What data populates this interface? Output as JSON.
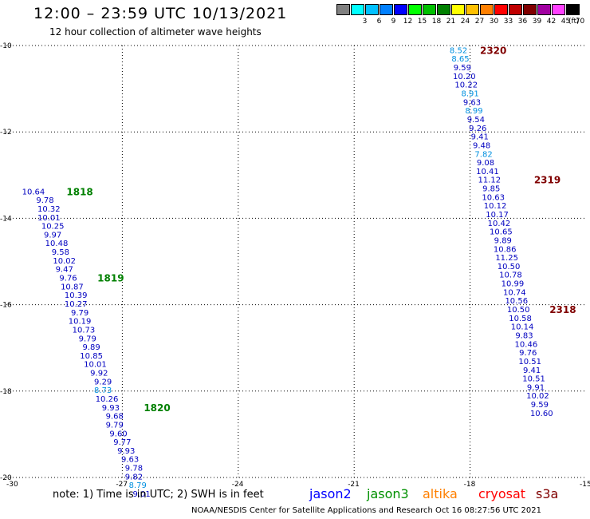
{
  "header": {
    "title": "12:00 – 23:59 UTC 10/13/2021",
    "subtitle": "12 hour collection of altimeter wave heights"
  },
  "legend": {
    "unit": "(ft)",
    "items": [
      {
        "label": "",
        "color": "#808080"
      },
      {
        "label": "3",
        "color": "#00ffff"
      },
      {
        "label": "6",
        "color": "#00c0ff"
      },
      {
        "label": "9",
        "color": "#0080ff"
      },
      {
        "label": "12",
        "color": "#0000ff"
      },
      {
        "label": "15",
        "color": "#00ff00"
      },
      {
        "label": "18",
        "color": "#00c000"
      },
      {
        "label": "21",
        "color": "#008000"
      },
      {
        "label": "24",
        "color": "#ffff00"
      },
      {
        "label": "27",
        "color": "#ffc000"
      },
      {
        "label": "30",
        "color": "#ff8000"
      },
      {
        "label": "33",
        "color": "#ff0000"
      },
      {
        "label": "36",
        "color": "#c00000"
      },
      {
        "label": "39",
        "color": "#800000"
      },
      {
        "label": "42",
        "color": "#a000a0"
      },
      {
        "label": "45",
        "color": "#ff40ff"
      },
      {
        "label": "70",
        "color": "#000000"
      }
    ]
  },
  "map": {
    "lon_min": -30,
    "lon_max": -15,
    "lat_min": -20,
    "lat_max": -10,
    "x_ticks": [
      "-30",
      "-27",
      "-24",
      "-21",
      "-18",
      "-15"
    ],
    "y_ticks": [
      "-10",
      "-12",
      "-14",
      "-16",
      "-18",
      "-20"
    ],
    "tracks": [
      {
        "points": [
          {
            "lon": -29.3,
            "lat": -13.37,
            "value": "10.64",
            "color": "#0000c0"
          },
          {
            "lon": -29.0,
            "lat": -13.57,
            "value": "9.78",
            "color": "#0000c0"
          },
          {
            "lon": -28.9,
            "lat": -13.77,
            "value": "10.32",
            "color": "#0000c0"
          },
          {
            "lon": -28.9,
            "lat": -13.97,
            "value": "10.01",
            "color": "#0000c0"
          },
          {
            "lon": -28.8,
            "lat": -14.17,
            "value": "10.25",
            "color": "#0000c0"
          },
          {
            "lon": -28.8,
            "lat": -14.37,
            "value": "9.97",
            "color": "#0000c0"
          },
          {
            "lon": -28.7,
            "lat": -14.57,
            "value": "10.48",
            "color": "#0000c0"
          },
          {
            "lon": -28.6,
            "lat": -14.77,
            "value": "9.58",
            "color": "#0000c0"
          },
          {
            "lon": -28.5,
            "lat": -14.97,
            "value": "10.02",
            "color": "#0000c0"
          },
          {
            "lon": -28.5,
            "lat": -15.17,
            "value": "9.47",
            "color": "#0000c0"
          },
          {
            "lon": -28.4,
            "lat": -15.37,
            "value": "9.76",
            "color": "#0000c0"
          },
          {
            "lon": -28.3,
            "lat": -15.57,
            "value": "10.87",
            "color": "#0000c0"
          },
          {
            "lon": -28.2,
            "lat": -15.77,
            "value": "10.39",
            "color": "#0000c0"
          },
          {
            "lon": -28.2,
            "lat": -15.97,
            "value": "10.27",
            "color": "#0000c0"
          },
          {
            "lon": -28.1,
            "lat": -16.17,
            "value": "9.79",
            "color": "#0000c0"
          },
          {
            "lon": -28.1,
            "lat": -16.37,
            "value": "10.19",
            "color": "#0000c0"
          },
          {
            "lon": -28.0,
            "lat": -16.57,
            "value": "10.73",
            "color": "#0000c0"
          },
          {
            "lon": -27.9,
            "lat": -16.77,
            "value": "9.79",
            "color": "#0000c0"
          },
          {
            "lon": -27.8,
            "lat": -16.97,
            "value": "9.89",
            "color": "#0000c0"
          },
          {
            "lon": -27.8,
            "lat": -17.17,
            "value": "10.85",
            "color": "#0000c0"
          },
          {
            "lon": -27.7,
            "lat": -17.37,
            "value": "10.01",
            "color": "#0000c0"
          },
          {
            "lon": -27.6,
            "lat": -17.57,
            "value": "9.92",
            "color": "#0000c0"
          },
          {
            "lon": -27.5,
            "lat": -17.77,
            "value": "9.29",
            "color": "#0000c0"
          },
          {
            "lon": -27.5,
            "lat": -17.97,
            "value": "8.73",
            "color": "#0090e0"
          },
          {
            "lon": -27.4,
            "lat": -18.17,
            "value": "10.26",
            "color": "#0000c0"
          },
          {
            "lon": -27.3,
            "lat": -18.37,
            "value": "9.93",
            "color": "#0000c0"
          },
          {
            "lon": -27.2,
            "lat": -18.57,
            "value": "9.68",
            "color": "#0000c0"
          },
          {
            "lon": -27.2,
            "lat": -18.77,
            "value": "9.79",
            "color": "#0000c0"
          },
          {
            "lon": -27.1,
            "lat": -18.97,
            "value": "9.60",
            "color": "#0000c0"
          },
          {
            "lon": -27.0,
            "lat": -19.17,
            "value": "9.77",
            "color": "#0000c0"
          },
          {
            "lon": -26.9,
            "lat": -19.37,
            "value": "9.93",
            "color": "#0000c0"
          },
          {
            "lon": -26.8,
            "lat": -19.57,
            "value": "9.63",
            "color": "#0000c0"
          },
          {
            "lon": -26.7,
            "lat": -19.77,
            "value": "9.78",
            "color": "#0000c0"
          },
          {
            "lon": -26.7,
            "lat": -19.97,
            "value": "9.82",
            "color": "#0000c0"
          },
          {
            "lon": -26.6,
            "lat": -20.17,
            "value": "8.79",
            "color": "#0090e0"
          },
          {
            "lon": -26.5,
            "lat": -20.37,
            "value": "9.01",
            "color": "#0000c0"
          }
        ],
        "time_labels": [
          {
            "lon": -28.1,
            "lat": -13.37,
            "text": "1818",
            "color": "#008000"
          },
          {
            "lon": -27.3,
            "lat": -15.37,
            "text": "1819",
            "color": "#008000"
          },
          {
            "lon": -26.1,
            "lat": -18.37,
            "text": "1820",
            "color": "#008000"
          }
        ]
      },
      {
        "points": [
          {
            "lon": -18.3,
            "lat": -10.1,
            "value": "8.52",
            "color": "#0090e0"
          },
          {
            "lon": -18.25,
            "lat": -10.3,
            "value": "8.65",
            "color": "#0090e0"
          },
          {
            "lon": -18.2,
            "lat": -10.5,
            "value": "9.59",
            "color": "#0000c0"
          },
          {
            "lon": -18.15,
            "lat": -10.7,
            "value": "10.20",
            "color": "#0000c0"
          },
          {
            "lon": -18.1,
            "lat": -10.9,
            "value": "10.22",
            "color": "#0000c0"
          },
          {
            "lon": -18.0,
            "lat": -11.1,
            "value": "8.91",
            "color": "#0090e0"
          },
          {
            "lon": -17.95,
            "lat": -11.3,
            "value": "9.63",
            "color": "#0000c0"
          },
          {
            "lon": -17.9,
            "lat": -11.5,
            "value": "8.99",
            "color": "#0090e0"
          },
          {
            "lon": -17.85,
            "lat": -11.7,
            "value": "9.54",
            "color": "#0000c0"
          },
          {
            "lon": -17.8,
            "lat": -11.9,
            "value": "9.26",
            "color": "#0000c0"
          },
          {
            "lon": -17.75,
            "lat": -12.1,
            "value": "9.41",
            "color": "#0000c0"
          },
          {
            "lon": -17.7,
            "lat": -12.3,
            "value": "9.48",
            "color": "#0000c0"
          },
          {
            "lon": -17.65,
            "lat": -12.5,
            "value": "7.82",
            "color": "#0090e0"
          },
          {
            "lon": -17.6,
            "lat": -12.7,
            "value": "9.08",
            "color": "#0000c0"
          },
          {
            "lon": -17.55,
            "lat": -12.9,
            "value": "10.41",
            "color": "#0000c0"
          },
          {
            "lon": -17.5,
            "lat": -13.1,
            "value": "11.12",
            "color": "#0000c0"
          },
          {
            "lon": -17.45,
            "lat": -13.3,
            "value": "9.85",
            "color": "#0000c0"
          },
          {
            "lon": -17.4,
            "lat": -13.5,
            "value": "10.63",
            "color": "#0000c0"
          },
          {
            "lon": -17.35,
            "lat": -13.7,
            "value": "10.12",
            "color": "#0000c0"
          },
          {
            "lon": -17.3,
            "lat": -13.9,
            "value": "10.17",
            "color": "#0000c0"
          },
          {
            "lon": -17.25,
            "lat": -14.1,
            "value": "10.42",
            "color": "#0000c0"
          },
          {
            "lon": -17.2,
            "lat": -14.3,
            "value": "10.65",
            "color": "#0000c0"
          },
          {
            "lon": -17.15,
            "lat": -14.5,
            "value": "9.89",
            "color": "#0000c0"
          },
          {
            "lon": -17.1,
            "lat": -14.7,
            "value": "10.86",
            "color": "#0000c0"
          },
          {
            "lon": -17.05,
            "lat": -14.9,
            "value": "11.25",
            "color": "#0000c0"
          },
          {
            "lon": -17.0,
            "lat": -15.1,
            "value": "10.50",
            "color": "#0000c0"
          },
          {
            "lon": -16.95,
            "lat": -15.3,
            "value": "10.78",
            "color": "#0000c0"
          },
          {
            "lon": -16.9,
            "lat": -15.5,
            "value": "10.99",
            "color": "#0000c0"
          },
          {
            "lon": -16.85,
            "lat": -15.7,
            "value": "10.74",
            "color": "#0000c0"
          },
          {
            "lon": -16.8,
            "lat": -15.9,
            "value": "10.56",
            "color": "#0000c0"
          },
          {
            "lon": -16.75,
            "lat": -16.1,
            "value": "10.50",
            "color": "#0000c0"
          },
          {
            "lon": -16.7,
            "lat": -16.3,
            "value": "10.58",
            "color": "#0000c0"
          },
          {
            "lon": -16.65,
            "lat": -16.5,
            "value": "10.14",
            "color": "#0000c0"
          },
          {
            "lon": -16.6,
            "lat": -16.7,
            "value": "9.83",
            "color": "#0000c0"
          },
          {
            "lon": -16.55,
            "lat": -16.9,
            "value": "10.46",
            "color": "#0000c0"
          },
          {
            "lon": -16.5,
            "lat": -17.1,
            "value": "9.76",
            "color": "#0000c0"
          },
          {
            "lon": -16.45,
            "lat": -17.3,
            "value": "10.51",
            "color": "#0000c0"
          },
          {
            "lon": -16.4,
            "lat": -17.5,
            "value": "9.41",
            "color": "#0000c0"
          },
          {
            "lon": -16.35,
            "lat": -17.7,
            "value": "10.51",
            "color": "#0000c0"
          },
          {
            "lon": -16.3,
            "lat": -17.9,
            "value": "9.91",
            "color": "#0000c0"
          },
          {
            "lon": -16.25,
            "lat": -18.1,
            "value": "10.02",
            "color": "#0000c0"
          },
          {
            "lon": -16.2,
            "lat": -18.3,
            "value": "9.59",
            "color": "#0000c0"
          },
          {
            "lon": -16.15,
            "lat": -18.5,
            "value": "10.60",
            "color": "#0000c0"
          }
        ],
        "time_labels": [
          {
            "lon": -17.4,
            "lat": -10.1,
            "text": "2320",
            "color": "#800000"
          },
          {
            "lon": -16.0,
            "lat": -13.1,
            "text": "2319",
            "color": "#800000"
          },
          {
            "lon": -15.6,
            "lat": -16.1,
            "text": "2318",
            "color": "#800000"
          }
        ]
      }
    ]
  },
  "note": "note:  1) Time is in UTC;  2) SWH is in feet",
  "satellites": [
    {
      "name": "jason2",
      "color": "#0000ff"
    },
    {
      "name": "jason3",
      "color": "#009000"
    },
    {
      "name": "altika",
      "color": "#ff8000"
    },
    {
      "name": "cryosat",
      "color": "#ff0000"
    },
    {
      "name": "s3a",
      "color": "#800000"
    }
  ],
  "footer": "NOAA/NESDIS Center for Satellite Applications and Research     Oct 16 08:27:56 UTC 2021"
}
